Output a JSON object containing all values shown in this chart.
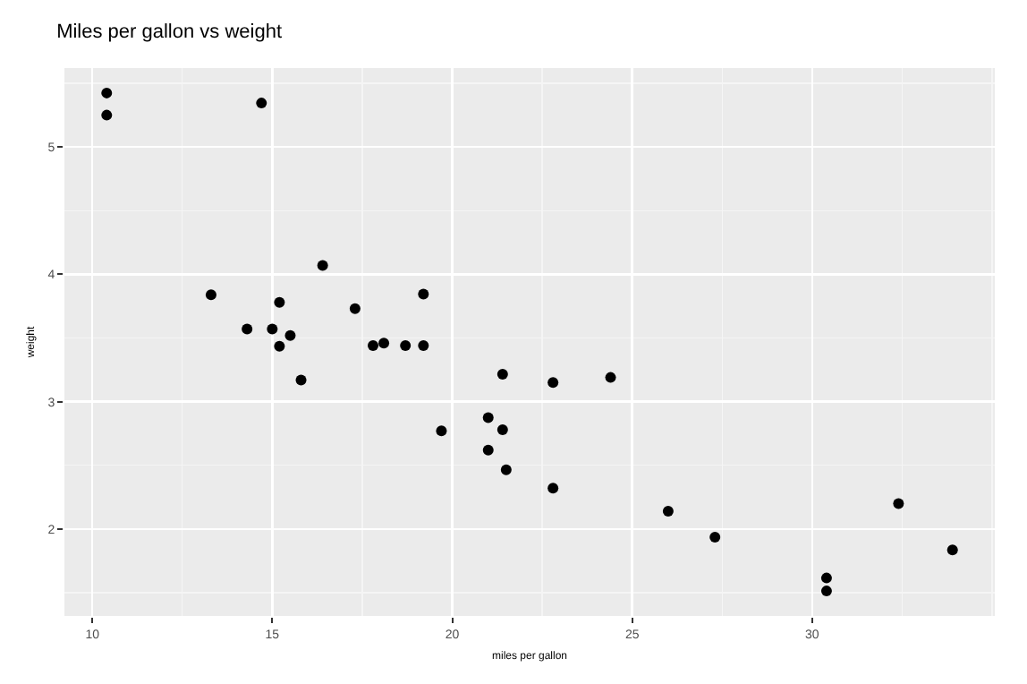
{
  "chart_data": {
    "type": "scatter",
    "title": "Miles per gallon vs weight",
    "xlabel": "miles per gallon",
    "ylabel": "weight",
    "x": [
      21.0,
      21.0,
      22.8,
      21.4,
      18.7,
      18.1,
      14.3,
      24.4,
      22.8,
      19.2,
      17.8,
      16.4,
      17.3,
      15.2,
      10.4,
      10.4,
      14.7,
      32.4,
      30.4,
      33.9,
      21.5,
      15.5,
      15.2,
      13.3,
      19.2,
      27.3,
      26.0,
      30.4,
      15.8,
      19.7,
      15.0,
      21.4
    ],
    "values": [
      2.62,
      2.875,
      2.32,
      3.215,
      3.44,
      3.46,
      3.57,
      3.19,
      3.15,
      3.44,
      3.44,
      4.07,
      3.73,
      3.78,
      5.25,
      5.424,
      5.345,
      2.2,
      1.615,
      1.835,
      2.465,
      3.52,
      3.435,
      3.84,
      3.845,
      1.935,
      2.14,
      1.513,
      3.17,
      2.77,
      3.57,
      2.78
    ],
    "color": "#000000",
    "marker": "circle",
    "xlim": [
      9.225,
      35.075
    ],
    "xticks": [
      10,
      15,
      20,
      25,
      30
    ],
    "ylim": [
      1.317,
      5.62
    ],
    "yticks": [
      2,
      3,
      4,
      5
    ],
    "grid": true
  }
}
